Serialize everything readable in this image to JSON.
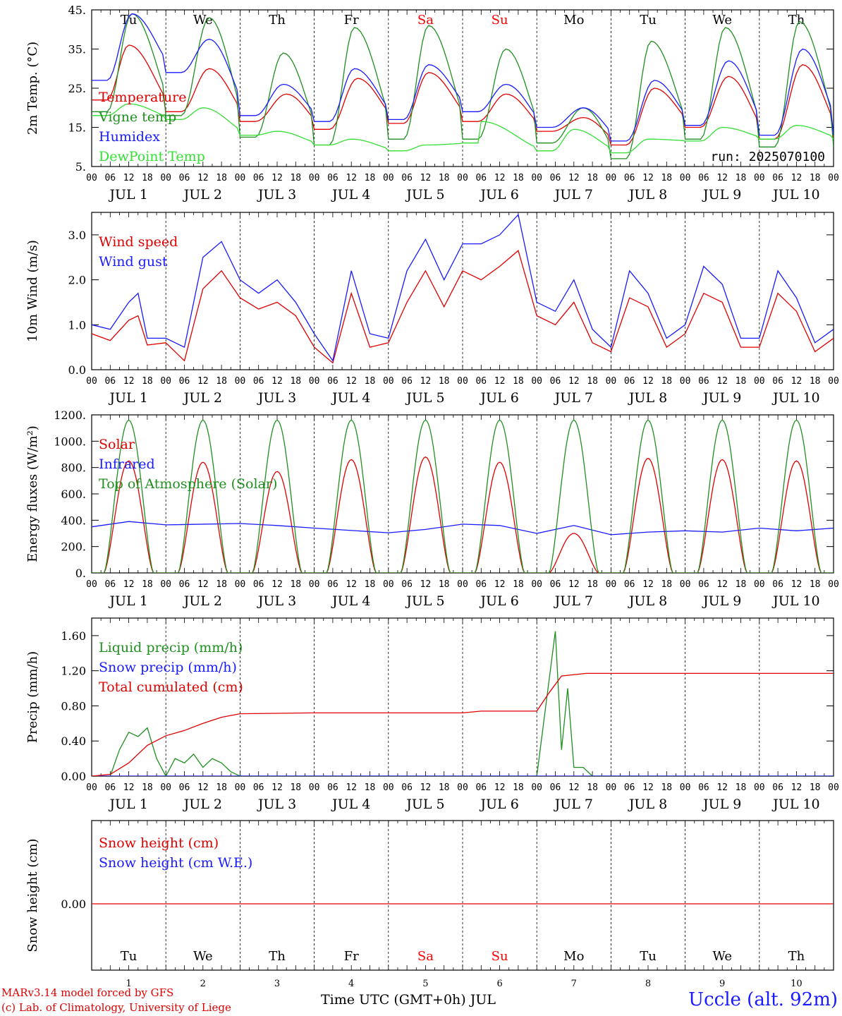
{
  "footer": {
    "credit_line1": "MARv3.14 model forced by GFS",
    "credit_line2": "(c) Lab. of Climatology, University of Liege",
    "station": "Uccle (alt. 92m)",
    "x_axis_title": "Time UTC (GMT+0h) JUL"
  },
  "colors": {
    "red": "#e00000",
    "green": "#1f8f1f",
    "blue": "#1a1aff",
    "lime": "#33e033",
    "weekend": "#ff0000"
  },
  "chart_data": [
    {
      "type": "line",
      "ylabel": "2m Temp. (°C)",
      "ylim": [
        5,
        45
      ],
      "yticks": [
        "5.",
        "15.",
        "25.",
        "35.",
        "45."
      ],
      "day_names": [
        "Tu",
        "We",
        "Th",
        "Fr",
        "Sa",
        "Su",
        "Mo",
        "Tu",
        "We",
        "Th"
      ],
      "weekend_days": [
        4,
        5
      ],
      "hour_ticks": [
        "00",
        "06",
        "12",
        "18"
      ],
      "date_labels": [
        "JUL 1",
        "JUL 2",
        "JUL 3",
        "JUL 4",
        "JUL 5",
        "JUL 6",
        "JUL 7",
        "JUL 8",
        "JUL 9",
        "JUL 10"
      ],
      "note": "run: 2025070100",
      "series": [
        {
          "name": "Temperature",
          "color": "red",
          "min": [
            22,
            19,
            16.5,
            14.5,
            16,
            16.5,
            14,
            10.5,
            15,
            12
          ],
          "max": [
            36,
            30,
            23.5,
            27.5,
            29,
            23.5,
            17.5,
            25,
            28,
            31
          ],
          "tmax": [
            12,
            14,
            15,
            14,
            13,
            14,
            15,
            14,
            14,
            14
          ]
        },
        {
          "name": "Vigne temp",
          "color": "green",
          "min": [
            19,
            18,
            12.5,
            10.5,
            12,
            12,
            11,
            7,
            12,
            10
          ],
          "max": [
            44,
            43,
            34,
            40.5,
            41,
            35,
            20,
            37,
            40.5,
            42
          ],
          "tmax": [
            13,
            14,
            14,
            13,
            13,
            14,
            15,
            13,
            13,
            13
          ]
        },
        {
          "name": "Humidex",
          "color": "blue",
          "min": [
            27,
            29,
            18,
            16.5,
            17,
            19,
            15,
            11.5,
            15.5,
            13
          ],
          "max": [
            44,
            37.5,
            26,
            30,
            31,
            26,
            20,
            27,
            32,
            35
          ],
          "tmax": [
            13,
            14,
            14,
            13,
            13,
            14,
            15,
            14,
            14,
            14
          ]
        },
        {
          "name": "DewPoint Temp",
          "color": "lime",
          "min": [
            18,
            17,
            13,
            10.5,
            9,
            11,
            9,
            8.5,
            11.5,
            12
          ],
          "max": [
            21,
            20,
            14,
            12,
            10.5,
            16.5,
            14.5,
            12,
            15,
            15.5
          ],
          "tmax": [
            12,
            12,
            12,
            12,
            12,
            6,
            12,
            12,
            12,
            12
          ]
        }
      ]
    },
    {
      "type": "line",
      "ylabel": "10m Wind (m/s)",
      "ylim": [
        0,
        3.5
      ],
      "yticks": [
        "0.0",
        "1.0",
        "2.0",
        "3.0"
      ],
      "hour_ticks": [
        "00",
        "06",
        "12",
        "18"
      ],
      "date_labels": [
        "JUL 1",
        "JUL 2",
        "JUL 3",
        "JUL 4",
        "JUL 5",
        "JUL 6",
        "JUL 7",
        "JUL 8",
        "JUL 9",
        "JUL 10"
      ],
      "series": [
        {
          "name": "Wind speed",
          "color": "red",
          "points": [
            [
              0,
              0.8
            ],
            [
              6,
              0.65
            ],
            [
              12,
              1.1
            ],
            [
              15,
              1.2
            ],
            [
              18,
              0.55
            ],
            [
              24,
              0.6
            ],
            [
              30,
              0.2
            ],
            [
              36,
              1.8
            ],
            [
              42,
              2.2
            ],
            [
              48,
              1.6
            ],
            [
              54,
              1.35
            ],
            [
              60,
              1.5
            ],
            [
              66,
              1.2
            ],
            [
              72,
              0.5
            ],
            [
              78,
              0.15
            ],
            [
              84,
              1.7
            ],
            [
              90,
              0.5
            ],
            [
              96,
              0.6
            ],
            [
              102,
              1.5
            ],
            [
              108,
              2.2
            ],
            [
              114,
              1.4
            ],
            [
              120,
              2.2
            ],
            [
              126,
              2.0
            ],
            [
              132,
              2.3
            ],
            [
              138,
              2.65
            ],
            [
              144,
              1.2
            ],
            [
              150,
              1.0
            ],
            [
              156,
              1.5
            ],
            [
              162,
              0.6
            ],
            [
              168,
              0.4
            ],
            [
              174,
              1.6
            ],
            [
              180,
              1.4
            ],
            [
              186,
              0.5
            ],
            [
              192,
              0.8
            ],
            [
              198,
              1.7
            ],
            [
              204,
              1.5
            ],
            [
              210,
              0.5
            ],
            [
              216,
              0.5
            ],
            [
              222,
              1.7
            ],
            [
              228,
              1.3
            ],
            [
              234,
              0.4
            ],
            [
              240,
              0.7
            ]
          ]
        },
        {
          "name": "Wind gust",
          "color": "blue",
          "points": [
            [
              0,
              1.0
            ],
            [
              6,
              0.9
            ],
            [
              12,
              1.5
            ],
            [
              15,
              1.7
            ],
            [
              18,
              0.7
            ],
            [
              24,
              0.7
            ],
            [
              30,
              0.5
            ],
            [
              36,
              2.5
            ],
            [
              42,
              2.85
            ],
            [
              48,
              2.0
            ],
            [
              54,
              1.7
            ],
            [
              60,
              2.0
            ],
            [
              66,
              1.5
            ],
            [
              72,
              0.8
            ],
            [
              78,
              0.2
            ],
            [
              84,
              2.2
            ],
            [
              90,
              0.8
            ],
            [
              96,
              0.7
            ],
            [
              102,
              2.2
            ],
            [
              108,
              2.9
            ],
            [
              114,
              2.0
            ],
            [
              120,
              2.8
            ],
            [
              126,
              2.8
            ],
            [
              132,
              3.0
            ],
            [
              138,
              3.45
            ],
            [
              144,
              1.5
            ],
            [
              150,
              1.3
            ],
            [
              156,
              2.0
            ],
            [
              162,
              0.9
            ],
            [
              168,
              0.5
            ],
            [
              174,
              2.2
            ],
            [
              180,
              1.7
            ],
            [
              186,
              0.7
            ],
            [
              192,
              1.0
            ],
            [
              198,
              2.3
            ],
            [
              204,
              1.9
            ],
            [
              210,
              0.7
            ],
            [
              216,
              0.7
            ],
            [
              222,
              2.2
            ],
            [
              228,
              1.6
            ],
            [
              234,
              0.6
            ],
            [
              240,
              0.9
            ]
          ]
        }
      ]
    },
    {
      "type": "line",
      "ylabel": "Energy fluxes (W/m²)",
      "ylim": [
        0,
        1200
      ],
      "yticks": [
        "0.",
        "200.",
        "400.",
        "600.",
        "800.",
        "1000.",
        "1200."
      ],
      "hour_ticks": [
        "00",
        "06",
        "12",
        "18"
      ],
      "date_labels": [
        "JUL 1",
        "JUL 2",
        "JUL 3",
        "JUL 4",
        "JUL 5",
        "JUL 6",
        "JUL 7",
        "JUL 8",
        "JUL 9",
        "JUL 10"
      ],
      "series": [
        {
          "name": "Solar",
          "color": "red",
          "daily_peak": [
            850,
            840,
            770,
            860,
            880,
            840,
            300,
            870,
            860,
            850
          ]
        },
        {
          "name": "Infrared",
          "color": "blue",
          "points": [
            [
              0,
              350
            ],
            [
              12,
              390
            ],
            [
              24,
              365
            ],
            [
              48,
              375
            ],
            [
              60,
              360
            ],
            [
              72,
              340
            ],
            [
              96,
              305
            ],
            [
              108,
              330
            ],
            [
              120,
              370
            ],
            [
              132,
              360
            ],
            [
              144,
              300
            ],
            [
              156,
              360
            ],
            [
              168,
              290
            ],
            [
              180,
              310
            ],
            [
              192,
              320
            ],
            [
              204,
              310
            ],
            [
              216,
              340
            ],
            [
              228,
              320
            ],
            [
              240,
              340
            ]
          ]
        },
        {
          "name": "Top of Atmosphere (Solar)",
          "color": "green",
          "daily_peak": 1160
        }
      ]
    },
    {
      "type": "line",
      "ylabel": "Precip (mm/h)",
      "ylim": [
        0,
        1.8
      ],
      "yticks": [
        "0.00",
        "0.40",
        "0.80",
        "1.20",
        "1.60"
      ],
      "hour_ticks": [
        "00",
        "06",
        "12",
        "18"
      ],
      "date_labels": [
        "JUL 1",
        "JUL 2",
        "JUL 3",
        "JUL 4",
        "JUL 5",
        "JUL 6",
        "JUL 7",
        "JUL 8",
        "JUL 9",
        "JUL 10"
      ],
      "series": [
        {
          "name": "Liquid precip (mm/h)",
          "color": "green",
          "points": [
            [
              0,
              0
            ],
            [
              6,
              0
            ],
            [
              9,
              0.3
            ],
            [
              12,
              0.5
            ],
            [
              15,
              0.45
            ],
            [
              18,
              0.55
            ],
            [
              21,
              0.2
            ],
            [
              24,
              0
            ],
            [
              27,
              0.2
            ],
            [
              30,
              0.15
            ],
            [
              33,
              0.25
            ],
            [
              36,
              0.1
            ],
            [
              39,
              0.2
            ],
            [
              42,
              0.15
            ],
            [
              45,
              0.05
            ],
            [
              48,
              0
            ],
            [
              144,
              0
            ],
            [
              150,
              1.65
            ],
            [
              152,
              0.3
            ],
            [
              154,
              1.0
            ],
            [
              156,
              0.1
            ],
            [
              159,
              0.1
            ],
            [
              162,
              0
            ],
            [
              240,
              0
            ]
          ]
        },
        {
          "name": "Snow precip (mm/h)",
          "color": "blue",
          "points": [
            [
              0,
              0
            ],
            [
              240,
              0
            ]
          ]
        },
        {
          "name": "Total cumulated (cm)",
          "color": "red",
          "points": [
            [
              0,
              0
            ],
            [
              6,
              0.02
            ],
            [
              12,
              0.15
            ],
            [
              18,
              0.35
            ],
            [
              24,
              0.46
            ],
            [
              30,
              0.52
            ],
            [
              36,
              0.6
            ],
            [
              42,
              0.67
            ],
            [
              48,
              0.71
            ],
            [
              72,
              0.72
            ],
            [
              120,
              0.72
            ],
            [
              126,
              0.74
            ],
            [
              144,
              0.74
            ],
            [
              148,
              0.95
            ],
            [
              152,
              1.14
            ],
            [
              160,
              1.17
            ],
            [
              240,
              1.17
            ]
          ]
        }
      ]
    },
    {
      "type": "line",
      "ylabel": "Snow height (cm)",
      "yticks": [
        "0.00"
      ],
      "day_names": [
        "Tu",
        "We",
        "Th",
        "Fr",
        "Sa",
        "Su",
        "Mo",
        "Tu",
        "We",
        "Th"
      ],
      "weekend_days": [
        4,
        5
      ],
      "day_numbers": [
        "1",
        "2",
        "3",
        "4",
        "5",
        "6",
        "7",
        "8",
        "9",
        "10"
      ],
      "series": [
        {
          "name": "Snow height (cm)",
          "color": "red",
          "points": [
            [
              0,
              0
            ],
            [
              240,
              0
            ]
          ]
        },
        {
          "name": "Snow height (cm W.E.)",
          "color": "blue",
          "points": [
            [
              0,
              0
            ],
            [
              240,
              0
            ]
          ]
        }
      ]
    }
  ]
}
